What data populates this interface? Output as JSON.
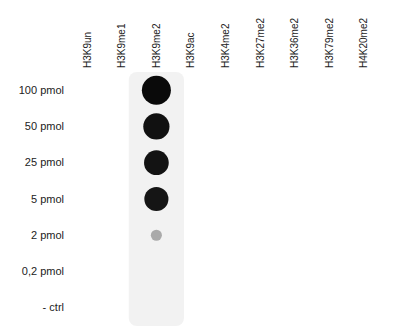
{
  "chart_data": {
    "type": "dot_blot",
    "x": [
      "H3K9un",
      "H3K9me1",
      "H3K9me2",
      "H3K9ac",
      "H3K4me2",
      "H3K27me2",
      "H3K36me2",
      "H3K79me2",
      "H4K20me2"
    ],
    "categories": [
      "100 pmol",
      "50 pmol",
      "25 pmol",
      "5 pmol",
      "2 pmol",
      "0,2 pmol",
      "- ctrl"
    ],
    "dot_column": "H3K9me2",
    "sizes": [
      55,
      45,
      40,
      38,
      8,
      0,
      0
    ],
    "colors": [
      "#0a0a0a",
      "#111111",
      "#131313",
      "#151515",
      "#aaaaaa",
      null,
      null
    ],
    "grid": false
  }
}
